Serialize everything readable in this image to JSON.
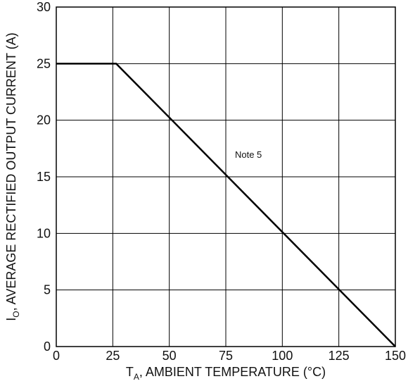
{
  "chart_data": {
    "type": "line",
    "title": "",
    "xlabel": {
      "main": "T",
      "sub": "A",
      "rest": ", AMBIENT TEMPERATURE (°C)"
    },
    "ylabel": {
      "main": "I",
      "sub": "O",
      "rest": ", AVERAGE RECTIFIED OUTPUT CURRENT (A)"
    },
    "xlim": [
      0,
      150
    ],
    "ylim": [
      0,
      30
    ],
    "x_ticks": [
      "0",
      "25",
      "50",
      "75",
      "100",
      "125",
      "150"
    ],
    "y_ticks": [
      "0",
      "5",
      "10",
      "15",
      "20",
      "25",
      "30"
    ],
    "grid": true,
    "series": [
      {
        "x": [
          0,
          26.5,
          150
        ],
        "y": [
          25,
          25,
          0
        ],
        "color": "#000000"
      }
    ],
    "annotations": [
      {
        "text": "Note 5",
        "x": 85,
        "y": 17
      }
    ]
  }
}
